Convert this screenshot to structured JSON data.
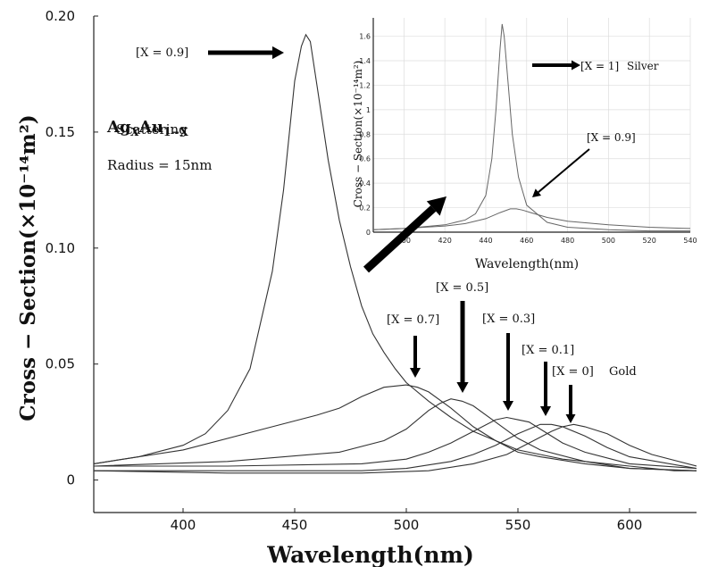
{
  "chart_data": [
    {
      "type": "line",
      "title": "",
      "xlabel": "Wavelength(nm)",
      "ylabel": "Cross − Section(×10⁻¹⁴m²)",
      "xlim": [
        360,
        630
      ],
      "ylim": [
        -0.014,
        0.2
      ],
      "x_ticks": [
        "400",
        "450",
        "500",
        "550",
        "600"
      ],
      "y_ticks": [
        "0",
        "0.05",
        "0.10",
        "0.15",
        "0.20"
      ],
      "grid": false,
      "info_title": "Ag",
      "info_title_sub1": "X",
      "info_title_mid": "Au",
      "info_title_sub2": "1−X",
      "info_line1": "Scattering",
      "info_line2": "Radius = 15nm",
      "series": [
        {
          "name": "[X = 0.9]",
          "label": "[X = 0.9]",
          "x": [
            360,
            380,
            400,
            410,
            420,
            430,
            440,
            445,
            450,
            453,
            455,
            457,
            460,
            465,
            470,
            475,
            480,
            485,
            490,
            495,
            500,
            510,
            520,
            530,
            540,
            550,
            560,
            570,
            580,
            590,
            600,
            610,
            620,
            630
          ],
          "y": [
            0.007,
            0.01,
            0.015,
            0.02,
            0.03,
            0.048,
            0.09,
            0.125,
            0.172,
            0.187,
            0.192,
            0.189,
            0.17,
            0.138,
            0.112,
            0.092,
            0.075,
            0.063,
            0.055,
            0.048,
            0.042,
            0.034,
            0.027,
            0.021,
            0.017,
            0.013,
            0.011,
            0.009,
            0.008,
            0.007,
            0.006,
            0.005,
            0.004,
            0.004
          ]
        },
        {
          "name": "[X = 0.7]",
          "label": "[X = 0.7]",
          "x": [
            360,
            400,
            440,
            460,
            470,
            480,
            490,
            500,
            505,
            510,
            520,
            530,
            540,
            550,
            560,
            580,
            600,
            630
          ],
          "y": [
            0.007,
            0.013,
            0.023,
            0.028,
            0.031,
            0.036,
            0.04,
            0.041,
            0.04,
            0.038,
            0.031,
            0.023,
            0.017,
            0.012,
            0.01,
            0.007,
            0.005,
            0.004
          ]
        },
        {
          "name": "[X = 0.5]",
          "label": "[X = 0.5]",
          "x": [
            360,
            420,
            470,
            490,
            500,
            510,
            515,
            520,
            525,
            530,
            540,
            550,
            560,
            580,
            600,
            630
          ],
          "y": [
            0.006,
            0.008,
            0.012,
            0.017,
            0.022,
            0.03,
            0.033,
            0.035,
            0.034,
            0.032,
            0.025,
            0.018,
            0.013,
            0.008,
            0.005,
            0.004
          ]
        },
        {
          "name": "[X = 0.3]",
          "label": "[X = 0.3]",
          "x": [
            360,
            420,
            480,
            500,
            510,
            520,
            530,
            540,
            545,
            550,
            555,
            560,
            570,
            580,
            600,
            630
          ],
          "y": [
            0.006,
            0.006,
            0.007,
            0.009,
            0.012,
            0.016,
            0.021,
            0.026,
            0.027,
            0.026,
            0.025,
            0.022,
            0.016,
            0.012,
            0.007,
            0.005
          ]
        },
        {
          "name": "[X = 0.1]",
          "label": "[X = 0.1]",
          "x": [
            360,
            420,
            480,
            500,
            520,
            530,
            540,
            550,
            560,
            565,
            570,
            580,
            590,
            600,
            630
          ],
          "y": [
            0.004,
            0.004,
            0.004,
            0.005,
            0.008,
            0.011,
            0.015,
            0.02,
            0.024,
            0.024,
            0.023,
            0.019,
            0.014,
            0.01,
            0.005
          ]
        },
        {
          "name": "[X = 0] Gold",
          "label": "[X = 0]",
          "extra": "Gold",
          "x": [
            360,
            420,
            480,
            510,
            530,
            545,
            555,
            565,
            570,
            575,
            580,
            590,
            600,
            610,
            630
          ],
          "y": [
            0.004,
            0.003,
            0.003,
            0.004,
            0.007,
            0.011,
            0.016,
            0.021,
            0.023,
            0.024,
            0.023,
            0.02,
            0.015,
            0.011,
            0.006
          ]
        }
      ]
    },
    {
      "type": "line",
      "title": "",
      "xlabel": "Wavelength(nm)",
      "ylabel": "Cross − Section(×10⁻¹⁴m²)",
      "xlim": [
        385,
        540
      ],
      "ylim": [
        0,
        1.75
      ],
      "x_ticks": [
        "400",
        "420",
        "440",
        "460",
        "480",
        "500",
        "520",
        "540"
      ],
      "y_ticks": [
        "0",
        "0.2",
        "0.4",
        "0.6",
        "0.8",
        "1",
        "1.2",
        "1.4",
        "1.6"
      ],
      "grid": true,
      "series": [
        {
          "name": "[X = 1] Silver",
          "label": "[X = 1]",
          "extra": "Silver",
          "x": [
            385,
            400,
            420,
            430,
            435,
            440,
            443,
            445,
            447,
            448,
            449,
            451,
            453,
            456,
            460,
            470,
            480,
            500,
            520,
            540
          ],
          "y": [
            0.02,
            0.03,
            0.06,
            0.1,
            0.15,
            0.3,
            0.6,
            1.0,
            1.5,
            1.7,
            1.6,
            1.2,
            0.8,
            0.45,
            0.22,
            0.08,
            0.04,
            0.02,
            0.01,
            0.01
          ]
        },
        {
          "name": "[X = 0.9]",
          "label": "[X = 0.9]",
          "x": [
            385,
            400,
            420,
            430,
            440,
            447,
            452,
            455,
            458,
            462,
            470,
            480,
            500,
            520,
            540
          ],
          "y": [
            0.02,
            0.03,
            0.05,
            0.07,
            0.11,
            0.16,
            0.19,
            0.19,
            0.18,
            0.16,
            0.12,
            0.09,
            0.06,
            0.04,
            0.03
          ]
        }
      ]
    }
  ]
}
